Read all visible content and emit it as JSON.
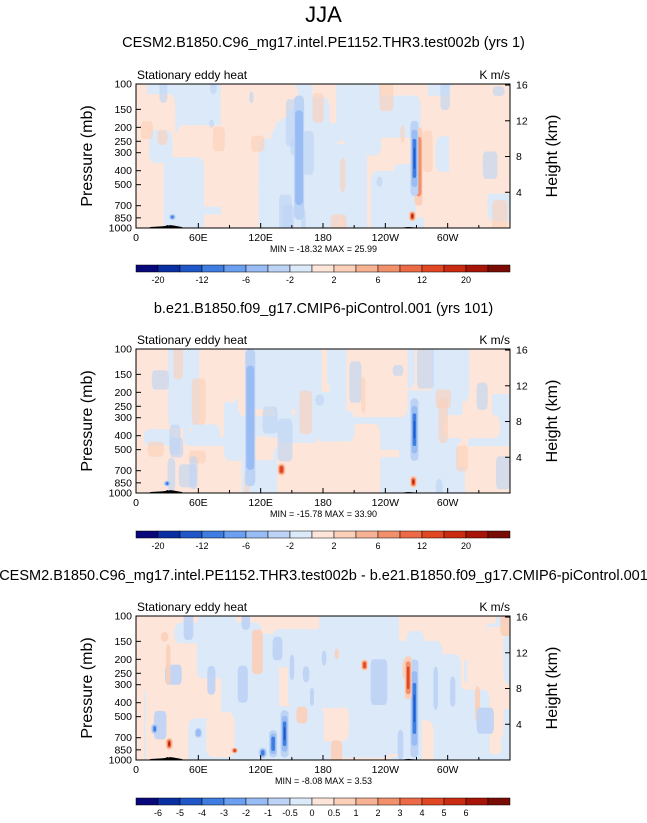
{
  "figure": {
    "title": "JJA"
  },
  "chart_data": [
    {
      "type": "heatmap",
      "title": "CESM2.B1850.C96_mg17.intel.PE1152.THR3.test002b (yrs 1)",
      "left_label": "Stationary eddy heat",
      "units": "K m/s",
      "ylabel": "Pressure (mb)",
      "ylabel_right": "Height (km)",
      "x_ticks": [
        "0",
        "60E",
        "120E",
        "180",
        "120W",
        "60W"
      ],
      "x_tick_values": [
        0,
        60,
        120,
        180,
        240,
        300
      ],
      "xlim": [
        0,
        360
      ],
      "y_ticks": [
        "100",
        "150",
        "200",
        "250",
        "300",
        "400",
        "500",
        "700",
        "850",
        "1000"
      ],
      "y_tick_values": [
        100,
        150,
        200,
        250,
        300,
        400,
        500,
        700,
        850,
        1000
      ],
      "ylim": [
        100,
        1000
      ],
      "height_ticks": [
        "4",
        "8",
        "12",
        "16"
      ],
      "height_tick_values": [
        4,
        8,
        12,
        16
      ],
      "stats": "MIN = -18.32  MAX = 25.99",
      "colorbar": {
        "labels": [
          "-20",
          "-12",
          "-6",
          "-2",
          "2",
          "6",
          "12",
          "20"
        ],
        "colors": [
          "#08087a",
          "#0a2fa3",
          "#1f57c8",
          "#3f7ee0",
          "#6b9ff0",
          "#98bcf3",
          "#bcd3f5",
          "#dce9f8",
          "#fde6d9",
          "#fbcfb8",
          "#f7b294",
          "#f2906c",
          "#ec6a45",
          "#e04722",
          "#c92a12",
          "#a61508",
          "#7a0c06"
        ]
      },
      "features": [
        {
          "kind": "neg_strip",
          "lon": 157,
          "p_top": 120,
          "p_bot": 880,
          "intensity": 1
        },
        {
          "kind": "pos_column",
          "lon": 272,
          "p_top": 200,
          "p_bot": 700,
          "intensity": 1
        },
        {
          "kind": "neg_column",
          "lon": 268,
          "p_top": 180,
          "p_bot": 600,
          "intensity": 3
        },
        {
          "kind": "pos_spot",
          "lon": 266,
          "p_top": 760,
          "p_bot": 900,
          "intensity": 3
        },
        {
          "kind": "neg_spot",
          "lon": 35,
          "p_top": 800,
          "p_bot": 880,
          "intensity": 2
        }
      ],
      "pattern": "a"
    },
    {
      "type": "heatmap",
      "title": "b.e21.B1850.f09_g17.CMIP6-piControl.001 (yrs 101)",
      "left_label": "Stationary eddy heat",
      "units": "K m/s",
      "ylabel": "Pressure (mb)",
      "ylabel_right": "Height (km)",
      "x_ticks": [
        "0",
        "60E",
        "120E",
        "180",
        "120W",
        "60W"
      ],
      "x_tick_values": [
        0,
        60,
        120,
        180,
        240,
        300
      ],
      "xlim": [
        0,
        360
      ],
      "y_ticks": [
        "100",
        "150",
        "200",
        "250",
        "300",
        "400",
        "500",
        "700",
        "850",
        "1000"
      ],
      "y_tick_values": [
        100,
        150,
        200,
        250,
        300,
        400,
        500,
        700,
        850,
        1000
      ],
      "ylim": [
        100,
        1000
      ],
      "height_ticks": [
        "4",
        "8",
        "12",
        "16"
      ],
      "height_tick_values": [
        4,
        8,
        12,
        16
      ],
      "stats": "MIN = -15.78  MAX = 33.90",
      "colorbar": {
        "labels": [
          "-20",
          "-12",
          "-6",
          "-2",
          "2",
          "6",
          "12",
          "20"
        ],
        "colors": [
          "#08087a",
          "#0a2fa3",
          "#1f57c8",
          "#3f7ee0",
          "#6b9ff0",
          "#98bcf3",
          "#bcd3f5",
          "#dce9f8",
          "#fde6d9",
          "#fbcfb8",
          "#f7b294",
          "#f2906c",
          "#ec6a45",
          "#e04722",
          "#c92a12",
          "#a61508",
          "#7a0c06"
        ]
      },
      "features": [
        {
          "kind": "neg_strip",
          "lon": 110,
          "p_top": 100,
          "p_bot": 900,
          "intensity": 1
        },
        {
          "kind": "pos_column",
          "lon": 140,
          "p_top": 620,
          "p_bot": 760,
          "intensity": 2
        },
        {
          "kind": "neg_column",
          "lon": 268,
          "p_top": 220,
          "p_bot": 600,
          "intensity": 3
        },
        {
          "kind": "pos_spot",
          "lon": 267,
          "p_top": 760,
          "p_bot": 920,
          "intensity": 3
        },
        {
          "kind": "neg_spot",
          "lon": 30,
          "p_top": 820,
          "p_bot": 900,
          "intensity": 2
        }
      ],
      "pattern": "b"
    },
    {
      "type": "heatmap",
      "title": "CESM2.B1850.C96_mg17.intel.PE1152.THR3.test002b - b.e21.B1850.f09_g17.CMIP6-piControl.001",
      "left_label": "Stationary eddy heat",
      "units": "K m/s",
      "ylabel": "Pressure (mb)",
      "ylabel_right": "Height (km)",
      "x_ticks": [
        "0",
        "60E",
        "120E",
        "180",
        "120W",
        "60W"
      ],
      "x_tick_values": [
        0,
        60,
        120,
        180,
        240,
        300
      ],
      "xlim": [
        0,
        360
      ],
      "y_ticks": [
        "100",
        "150",
        "200",
        "250",
        "300",
        "400",
        "500",
        "700",
        "850",
        "1000"
      ],
      "y_tick_values": [
        100,
        150,
        200,
        250,
        300,
        400,
        500,
        700,
        850,
        1000
      ],
      "ylim": [
        100,
        1000
      ],
      "height_ticks": [
        "4",
        "8",
        "12",
        "16"
      ],
      "height_tick_values": [
        4,
        8,
        12,
        16
      ],
      "stats": "MIN = -8.08  MAX = 3.53",
      "colorbar": {
        "labels": [
          "-6",
          "-5",
          "-4",
          "-3",
          "-2",
          "-1",
          "-0.5",
          "0",
          "0.5",
          "1",
          "2",
          "3",
          "4",
          "5",
          "6"
        ],
        "colors": [
          "#08087a",
          "#0a2fa3",
          "#1f57c8",
          "#3f7ee0",
          "#6b9ff0",
          "#98bcf3",
          "#bcd3f5",
          "#dce9f8",
          "#fde6d9",
          "#fbcfb8",
          "#f7b294",
          "#f2906c",
          "#ec6a45",
          "#e04722",
          "#c92a12",
          "#a61508",
          "#7a0c06"
        ]
      },
      "features": [
        {
          "kind": "neg_column",
          "lon": 143,
          "p_top": 450,
          "p_bot": 960,
          "intensity": 3
        },
        {
          "kind": "neg_column",
          "lon": 132,
          "p_top": 620,
          "p_bot": 960,
          "intensity": 2
        },
        {
          "kind": "neg_column",
          "lon": 122,
          "p_top": 820,
          "p_bot": 970,
          "intensity": 2
        },
        {
          "kind": "neg_column",
          "lon": 268,
          "p_top": 200,
          "p_bot": 960,
          "intensity": 3
        },
        {
          "kind": "pos_spot",
          "lon": 262,
          "p_top": 190,
          "p_bot": 380,
          "intensity": 2
        },
        {
          "kind": "pos_spot",
          "lon": 32,
          "p_top": 700,
          "p_bot": 850,
          "intensity": 3
        },
        {
          "kind": "pos_spot",
          "lon": 220,
          "p_top": 200,
          "p_bot": 240,
          "intensity": 2
        },
        {
          "kind": "neg_spot",
          "lon": 18,
          "p_top": 560,
          "p_bot": 660,
          "intensity": 2
        },
        {
          "kind": "neg_spot",
          "lon": 60,
          "p_top": 600,
          "p_bot": 700,
          "intensity": 1
        },
        {
          "kind": "pos_spot",
          "lon": 95,
          "p_top": 820,
          "p_bot": 900,
          "intensity": 2
        }
      ],
      "pattern": "c"
    }
  ]
}
